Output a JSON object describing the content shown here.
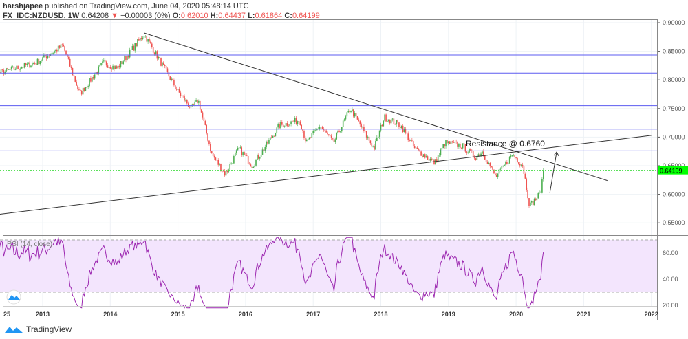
{
  "header": {
    "author": "harshjapee",
    "published": "published on TradingView.com, June 04, 2020 05:48:14 UTC",
    "symbol": "FX_IDC:NZDUSD, 1W",
    "last": "0.64208",
    "change": "−0.00003 (0%)",
    "o_label": "O:",
    "o": "0.62010",
    "h_label": "H:",
    "h": "0.64437",
    "l_label": "L:",
    "l": "0.61864",
    "c_label": "C:",
    "c": "0.64199"
  },
  "footer": {
    "brand": "TradingView"
  },
  "colors": {
    "up": "#4caf50",
    "down": "#ef5350",
    "level": "#5b5bf0",
    "rsi": "#9c27b0",
    "rsi_bg": "#f3e5fd",
    "price_tag": "#00ff00"
  },
  "chart_data": {
    "type": "candlestick",
    "symbol": "NZDUSD",
    "interval": "1W",
    "price_axis": {
      "ticks": [
        "0.90000",
        "0.85000",
        "0.80000",
        "0.75000",
        "0.70000",
        "0.65000",
        "0.60000",
        "0.55000"
      ],
      "range": [
        0.535,
        0.905
      ]
    },
    "time_axis": {
      "ticks": [
        "25",
        "2013",
        "2014",
        "2015",
        "2016",
        "2017",
        "2018",
        "2019",
        "2020",
        "2021",
        "2022"
      ]
    },
    "last_price_tag": "0.64199",
    "close_anchors": [
      [
        2012.0,
        0.79
      ],
      [
        2012.3,
        0.81
      ],
      [
        2012.9,
        0.83
      ],
      [
        2013.3,
        0.86
      ],
      [
        2013.55,
        0.775
      ],
      [
        2013.9,
        0.83
      ],
      [
        2014.1,
        0.82
      ],
      [
        2014.5,
        0.88
      ],
      [
        2014.7,
        0.84
      ],
      [
        2015.0,
        0.78
      ],
      [
        2015.2,
        0.75
      ],
      [
        2015.3,
        0.765
      ],
      [
        2015.5,
        0.67
      ],
      [
        2015.7,
        0.635
      ],
      [
        2015.9,
        0.68
      ],
      [
        2016.1,
        0.65
      ],
      [
        2016.5,
        0.72
      ],
      [
        2016.8,
        0.73
      ],
      [
        2016.9,
        0.69
      ],
      [
        2017.1,
        0.72
      ],
      [
        2017.3,
        0.69
      ],
      [
        2017.55,
        0.75
      ],
      [
        2017.9,
        0.68
      ],
      [
        2018.05,
        0.735
      ],
      [
        2018.3,
        0.72
      ],
      [
        2018.5,
        0.68
      ],
      [
        2018.8,
        0.655
      ],
      [
        2018.95,
        0.69
      ],
      [
        2019.2,
        0.685
      ],
      [
        2019.4,
        0.665
      ],
      [
        2019.5,
        0.675
      ],
      [
        2019.7,
        0.63
      ],
      [
        2019.95,
        0.67
      ],
      [
        2020.1,
        0.65
      ],
      [
        2020.2,
        0.58
      ],
      [
        2020.35,
        0.6
      ],
      [
        2020.42,
        0.642
      ]
    ],
    "horizontal_levels": [
      0.8435,
      0.812,
      0.755,
      0.714,
      0.676
    ],
    "trendlines": [
      [
        [
          2014.5,
          0.882
        ],
        [
          2021.35,
          0.624
        ]
      ],
      [
        [
          2012.0,
          0.56
        ],
        [
          2022.0,
          0.703
        ]
      ]
    ],
    "annotation": "Resistance @ 0.6760",
    "rsi": {
      "label": "RSI (14, close)",
      "ticks": [
        "60.00",
        "40.00",
        "20.00"
      ],
      "upper": 70,
      "lower": 30
    }
  }
}
